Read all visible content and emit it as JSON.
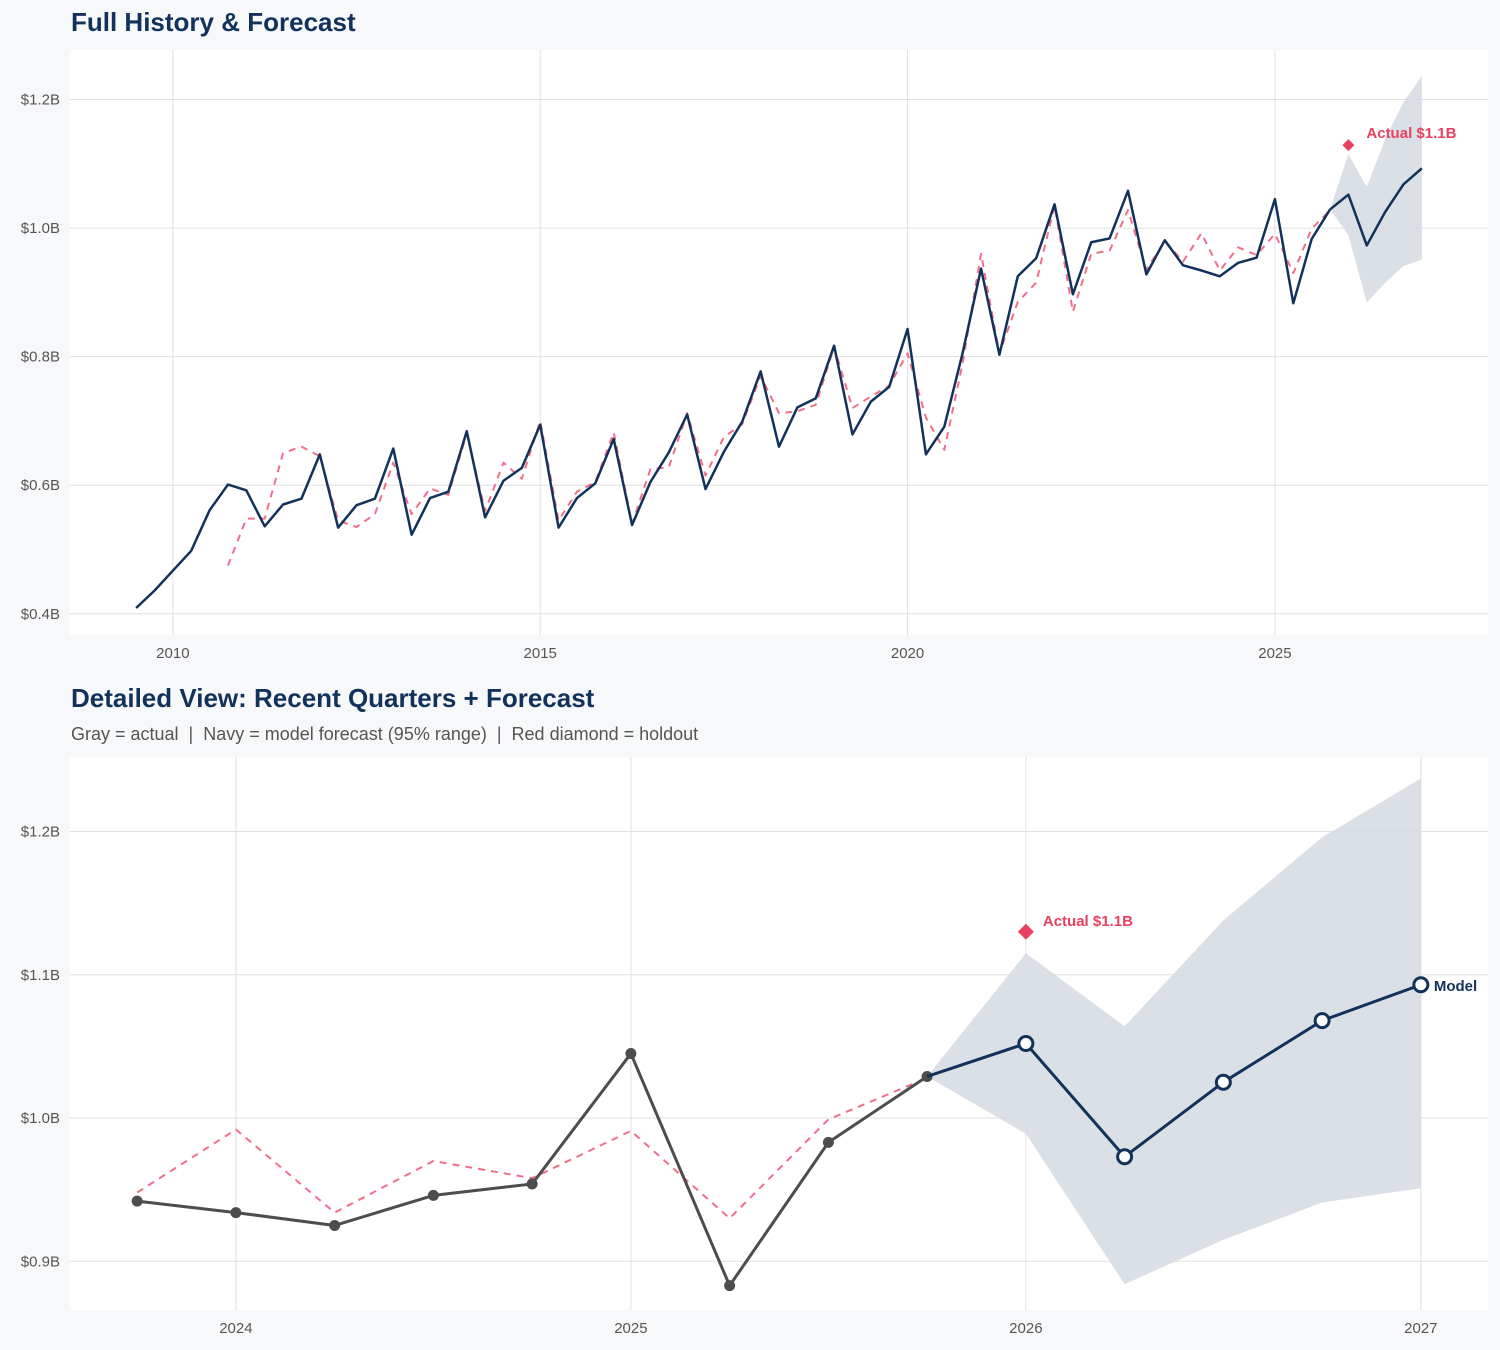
{
  "colors": {
    "navy": "#13325b",
    "gray": "#4d4d4d",
    "fitted": "#f07088",
    "holdout": "#e8415f",
    "band": "#d5dae2",
    "grid": "#e0e0e0",
    "panel": "#ffffff",
    "background": "#f7f8fa"
  },
  "chart_data": [
    {
      "type": "line",
      "title": "Full History & Forecast",
      "xlim": [
        2008.6,
        2027.9
      ],
      "ylim": [
        0.367,
        1.277
      ],
      "grid": true,
      "x_ticks": [
        2010,
        2015,
        2020,
        2025
      ],
      "x_tick_labels": [
        "2010",
        "2015",
        "2020",
        "2025"
      ],
      "y_ticks": [
        0.4,
        0.6,
        0.8,
        1.0,
        1.2
      ],
      "y_tick_labels": [
        "$0.4B",
        "$0.6B",
        "$0.8B",
        "$1.0B",
        "$1.2B"
      ],
      "series": [
        {
          "role": "actual",
          "color": "#13325b",
          "start": 2009.5,
          "step": 0.25,
          "values": [
            0.409,
            0.436,
            0.467,
            0.498,
            0.561,
            0.601,
            0.592,
            0.536,
            0.57,
            0.579,
            0.648,
            0.534,
            0.569,
            0.579,
            0.657,
            0.523,
            0.58,
            0.59,
            0.684,
            0.55,
            0.607,
            0.627,
            0.694,
            0.534,
            0.58,
            0.603,
            0.672,
            0.538,
            0.605,
            0.651,
            0.71,
            0.594,
            0.652,
            0.699,
            0.777,
            0.66,
            0.721,
            0.735,
            0.817,
            0.679,
            0.73,
            0.753,
            0.843,
            0.648,
            0.691,
            0.806,
            0.937,
            0.803,
            0.925,
            0.953,
            1.037,
            0.897,
            0.978,
            0.984,
            1.058,
            0.928,
            0.981,
            0.942,
            0.934,
            0.925,
            0.946,
            0.954,
            1.045,
            0.883,
            0.983,
            1.029
          ]
        },
        {
          "role": "fitted",
          "color": "#f07088",
          "dashed": true,
          "start": 2010.75,
          "step": 0.25,
          "values": [
            0.475,
            0.548,
            0.548,
            0.65,
            0.66,
            0.645,
            0.545,
            0.535,
            0.555,
            0.635,
            0.555,
            0.595,
            0.585,
            0.68,
            0.56,
            0.635,
            0.61,
            0.7,
            0.545,
            0.59,
            0.605,
            0.682,
            0.54,
            0.625,
            0.628,
            0.712,
            0.615,
            0.675,
            0.695,
            0.77,
            0.712,
            0.715,
            0.725,
            0.815,
            0.72,
            0.738,
            0.755,
            0.805,
            0.705,
            0.655,
            0.79,
            0.96,
            0.805,
            0.885,
            0.915,
            1.035,
            0.87,
            0.96,
            0.965,
            1.028,
            0.935,
            0.98,
            0.948,
            0.992,
            0.934,
            0.97,
            0.958,
            0.991,
            0.93,
            0.999,
            1.028
          ]
        },
        {
          "role": "forecast",
          "color": "#13325b",
          "start": 2025.75,
          "step": 0.25,
          "values": [
            1.029,
            1.052,
            0.973,
            1.025,
            1.068,
            1.093
          ],
          "upper": [
            1.029,
            1.115,
            1.064,
            1.138,
            1.196,
            1.237
          ],
          "lower": [
            1.029,
            0.989,
            0.884,
            0.915,
            0.941,
            0.951
          ]
        }
      ],
      "holdout": {
        "x": 2026.0,
        "y": 1.129,
        "label": "Actual $1.1B"
      }
    },
    {
      "type": "line",
      "title": "Detailed View: Recent Quarters + Forecast",
      "subtitle": "Gray = actual  |  Navy = model forecast (95% range)  |  Red diamond = holdout",
      "xlim": [
        2023.58,
        2027.17
      ],
      "ylim": [
        0.866,
        1.252
      ],
      "grid": true,
      "x_ticks": [
        2024,
        2025,
        2026,
        2027
      ],
      "x_tick_labels": [
        "2024",
        "2025",
        "2026",
        "2027"
      ],
      "y_ticks": [
        0.9,
        1.0,
        1.1,
        1.2
      ],
      "y_tick_labels": [
        "$0.9B",
        "$1.0B",
        "$1.1B",
        "$1.2B"
      ],
      "series": [
        {
          "role": "actual",
          "color": "#4d4d4d",
          "markers": true,
          "start": 2023.75,
          "step": 0.25,
          "values": [
            0.942,
            0.934,
            0.925,
            0.946,
            0.954,
            1.045,
            0.883,
            0.983,
            1.029
          ]
        },
        {
          "role": "fitted",
          "color": "#f07088",
          "dashed": true,
          "start": 2023.75,
          "step": 0.25,
          "values": [
            0.948,
            0.992,
            0.934,
            0.97,
            0.958,
            0.991,
            0.93,
            0.999,
            1.028
          ]
        },
        {
          "role": "forecast",
          "color": "#13325b",
          "markers": true,
          "start": 2025.75,
          "step": 0.25,
          "values": [
            1.029,
            1.052,
            0.973,
            1.025,
            1.068,
            1.093
          ],
          "upper": [
            1.029,
            1.115,
            1.064,
            1.138,
            1.196,
            1.237
          ],
          "lower": [
            1.029,
            0.989,
            0.884,
            0.915,
            0.941,
            0.951
          ],
          "end_label": "Model"
        }
      ],
      "holdout": {
        "x": 2026.0,
        "y": 1.13,
        "label": "Actual $1.1B"
      }
    }
  ]
}
